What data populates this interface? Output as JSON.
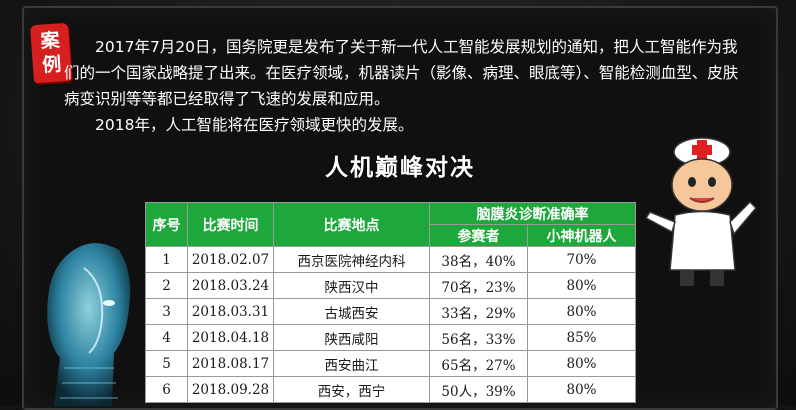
{
  "badge": {
    "line1": "案",
    "line2": "例"
  },
  "paragraph": {
    "p1": "2017年7月20日，国务院更是发布了关于新一代人工智能发展规划的通知，把人工智能作为我们的一个国家战略提了出来。在医疗领域，机器读片（影像、病理、眼底等）、智能检测血型、皮肤病变识别等等都已经取得了飞速的发展和应用。",
    "p2": "2018年，人工智能将在医疗领域更快的发展。"
  },
  "title": "人机巅峰对决",
  "table": {
    "headers": {
      "index": "序号",
      "date": "比赛时间",
      "location": "比赛地点",
      "group": "脑膜炎诊断准确率",
      "participants": "参赛者",
      "robot": "小神机器人"
    },
    "rows": [
      {
        "index": "1",
        "date": "2018.02.07",
        "location": "西京医院神经内科",
        "participants": "38名，40%",
        "robot": "70%"
      },
      {
        "index": "2",
        "date": "2018.03.24",
        "location": "陕西汉中",
        "participants": "70名，23%",
        "robot": "80%"
      },
      {
        "index": "3",
        "date": "2018.03.31",
        "location": "古城西安",
        "participants": "33名，29%",
        "robot": "80%"
      },
      {
        "index": "4",
        "date": "2018.04.18",
        "location": "陕西咸阳",
        "participants": "56名，33%",
        "robot": "85%"
      },
      {
        "index": "5",
        "date": "2018.08.17",
        "location": "西安曲江",
        "participants": "65名，27%",
        "robot": "80%"
      },
      {
        "index": "6",
        "date": "2018.09.28",
        "location": "西安，西宁",
        "participants": "50人，39%",
        "robot": "80%"
      }
    ]
  },
  "colors": {
    "badge": "#d62020",
    "header_green": "#1ea83b",
    "background": "#121212"
  }
}
